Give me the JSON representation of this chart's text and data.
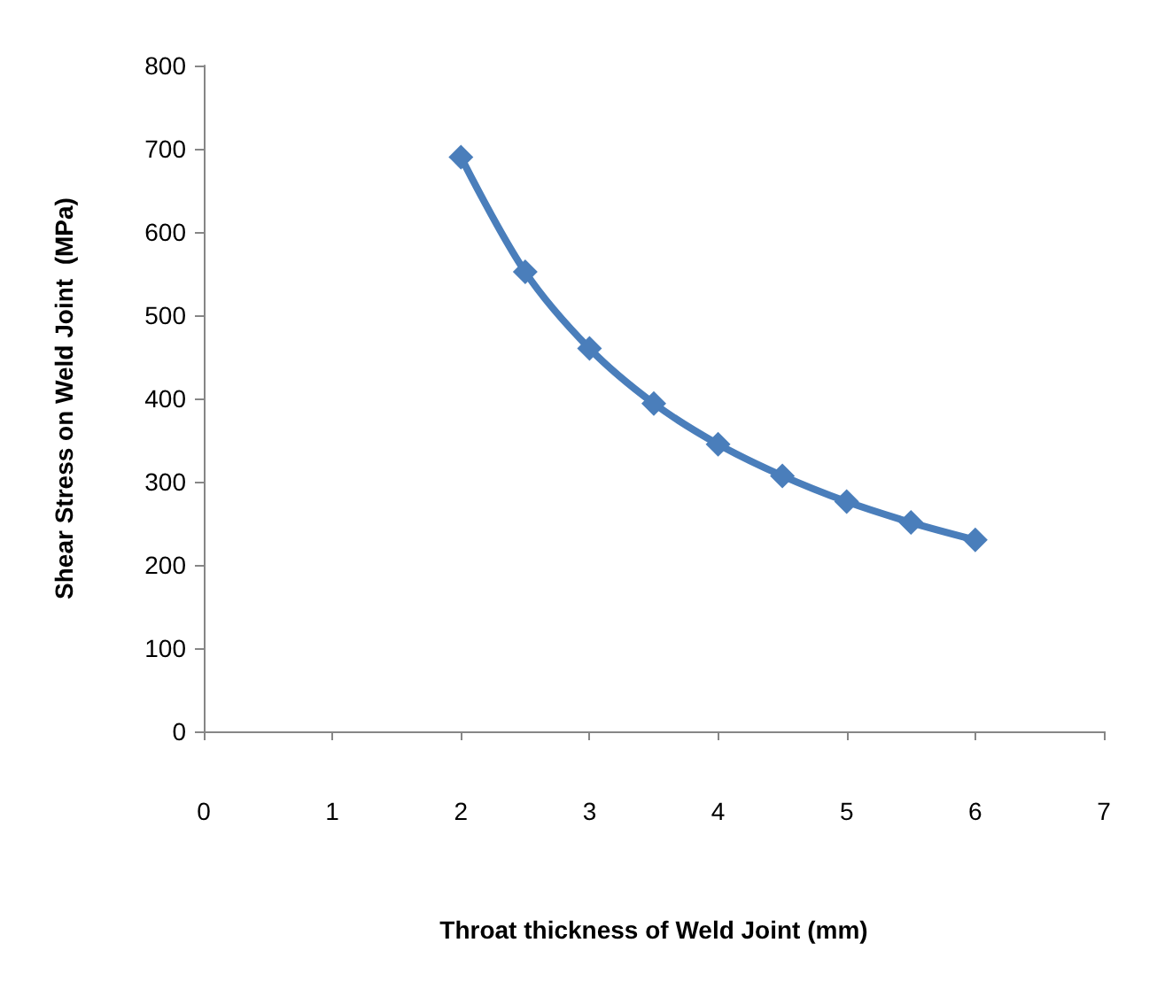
{
  "chart_data": {
    "type": "line",
    "xlabel": "Throat thickness of Weld Joint (mm)",
    "ylabel": "Shear Stress on Weld Joint  (MPa)",
    "series": [
      {
        "color": "#4a7ebb",
        "x": [
          2,
          2.5,
          3,
          3.5,
          4,
          4.5,
          5,
          5.5,
          6
        ],
        "values": [
          690,
          552,
          460,
          394,
          345,
          307,
          276,
          251,
          230
        ]
      }
    ],
    "xlim": [
      0,
      7
    ],
    "xticks": [
      0,
      1,
      2,
      3,
      4,
      5,
      6,
      7
    ],
    "ylim": [
      0,
      800
    ],
    "yticks": [
      0,
      100,
      200,
      300,
      400,
      500,
      600,
      700,
      800
    ],
    "grid": false,
    "marker": "diamond",
    "line_style": "solid"
  }
}
